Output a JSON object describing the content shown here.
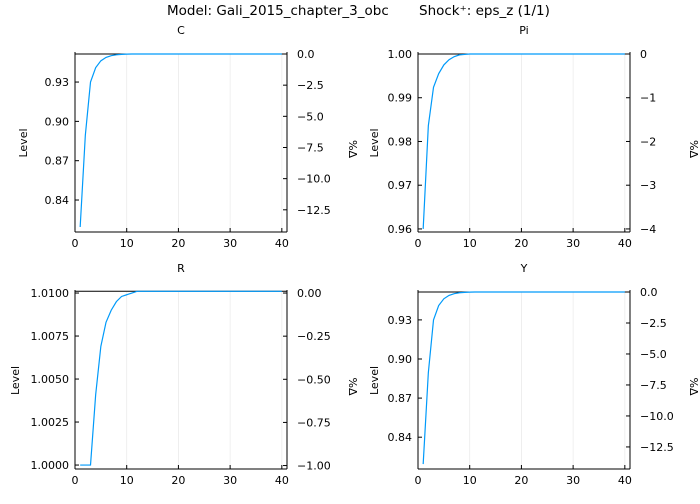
{
  "figure": {
    "title_model": "Model: Gali_2015_chapter_3_obc",
    "title_shock": "Shock⁺: eps_z  (1/1)",
    "line_color": "#009AFA",
    "axis_color": "#000000",
    "grid_color": "#EBEBEB"
  },
  "chart_data": [
    {
      "type": "line",
      "title": "C",
      "xlabel": "",
      "ylabel": "Level",
      "ylabel_right": "%Δ",
      "xlim": [
        0,
        41
      ],
      "ylim": [
        0.8156,
        0.9514
      ],
      "ylim_right": [
        -14.28,
        0.0
      ],
      "x_ticks": [
        0,
        10,
        20,
        30,
        40
      ],
      "y_ticks": [
        0.84,
        0.87,
        0.9,
        0.93
      ],
      "y_tick_labels": [
        "0.84",
        "0.87",
        "0.90",
        "0.93"
      ],
      "y_right_ticks": [
        0.0,
        -2.5,
        -5.0,
        -7.5,
        -10.0,
        -12.5
      ],
      "y_right_tick_labels": [
        "0.0",
        "−2.5",
        "−5.0",
        "−7.5",
        "−10.0",
        "−12.5"
      ],
      "steady_state": 0.9514,
      "grid": true,
      "x": [
        1,
        2,
        3,
        4,
        5,
        6,
        7,
        8,
        9,
        10,
        11,
        12,
        13,
        14,
        15,
        16,
        17,
        18,
        19,
        20,
        21,
        22,
        23,
        24,
        25,
        26,
        27,
        28,
        29,
        30,
        31,
        32,
        33,
        34,
        35,
        36,
        37,
        38,
        39,
        40
      ],
      "values": [
        0.8194,
        0.8895,
        0.93,
        0.941,
        0.9462,
        0.9488,
        0.9501,
        0.9508,
        0.9511,
        0.9513,
        0.9514,
        0.9514,
        0.9514,
        0.9514,
        0.9514,
        0.9514,
        0.9514,
        0.9514,
        0.9514,
        0.9514,
        0.9514,
        0.9514,
        0.9514,
        0.9514,
        0.9514,
        0.9514,
        0.9514,
        0.9514,
        0.9514,
        0.9514,
        0.9514,
        0.9514,
        0.9514,
        0.9514,
        0.9514,
        0.9514,
        0.9514,
        0.9514,
        0.9514,
        0.9514
      ]
    },
    {
      "type": "line",
      "title": "Pi",
      "xlabel": "",
      "ylabel": "Level",
      "ylabel_right": "%Δ",
      "xlim": [
        0,
        41
      ],
      "ylim": [
        0.9593,
        1.0
      ],
      "ylim_right": [
        -4.07,
        0.0
      ],
      "x_ticks": [
        0,
        10,
        20,
        30,
        40
      ],
      "y_ticks": [
        0.96,
        0.97,
        0.98,
        0.99,
        1.0
      ],
      "y_tick_labels": [
        "0.96",
        "0.97",
        "0.98",
        "0.99",
        "1.00"
      ],
      "y_right_ticks": [
        0,
        -1,
        -2,
        -3,
        -4
      ],
      "y_right_tick_labels": [
        "0",
        "−1",
        "−2",
        "−3",
        "−4"
      ],
      "steady_state": 1.0,
      "grid": true,
      "x": [
        1,
        2,
        3,
        4,
        5,
        6,
        7,
        8,
        9,
        10,
        11,
        12,
        13,
        14,
        15,
        16,
        17,
        18,
        19,
        20,
        21,
        22,
        23,
        24,
        25,
        26,
        27,
        28,
        29,
        30,
        31,
        32,
        33,
        34,
        35,
        36,
        37,
        38,
        39,
        40
      ],
      "values": [
        0.96,
        0.9836,
        0.9924,
        0.9955,
        0.9975,
        0.9987,
        0.9994,
        0.9998,
        0.9999,
        1.0,
        1.0,
        1.0,
        1.0,
        1.0,
        1.0,
        1.0,
        1.0,
        1.0,
        1.0,
        1.0,
        1.0,
        1.0,
        1.0,
        1.0,
        1.0,
        1.0,
        1.0,
        1.0,
        1.0,
        1.0,
        1.0,
        1.0,
        1.0,
        1.0,
        1.0,
        1.0,
        1.0,
        1.0,
        1.0,
        1.0
      ]
    },
    {
      "type": "line",
      "title": "R",
      "xlabel": "",
      "ylabel": "Level",
      "ylabel_right": "%Δ",
      "xlim": [
        0,
        41
      ],
      "ylim": [
        0.99977,
        1.01006
      ],
      "ylim_right": [
        -1.02,
        0.006
      ],
      "x_ticks": [
        0,
        10,
        20,
        30,
        40
      ],
      "y_ticks": [
        1.0,
        1.0025,
        1.005,
        1.0075,
        1.01
      ],
      "y_tick_labels": [
        "1.0000",
        "1.0025",
        "1.0050",
        "1.0075",
        "1.0100"
      ],
      "y_right_ticks": [
        0.0,
        -0.25,
        -0.5,
        -0.75,
        -1.0
      ],
      "y_right_tick_labels": [
        "0.00",
        "−0.25",
        "−0.50",
        "−0.75",
        "−1.00"
      ],
      "steady_state": 1.0101,
      "grid": true,
      "x": [
        1,
        2,
        3,
        4,
        5,
        6,
        7,
        8,
        9,
        10,
        11,
        12,
        13,
        14,
        15,
        16,
        17,
        18,
        19,
        20,
        21,
        22,
        23,
        24,
        25,
        26,
        27,
        28,
        29,
        30,
        31,
        32,
        33,
        34,
        35,
        36,
        37,
        38,
        39,
        40
      ],
      "values": [
        1.0,
        1.0,
        1.0,
        1.0041,
        1.0069,
        1.0083,
        1.009,
        1.0095,
        1.0098,
        1.0099,
        1.01,
        1.0101,
        1.0101,
        1.0101,
        1.0101,
        1.0101,
        1.0101,
        1.0101,
        1.0101,
        1.0101,
        1.0101,
        1.0101,
        1.0101,
        1.0101,
        1.0101,
        1.0101,
        1.0101,
        1.0101,
        1.0101,
        1.0101,
        1.0101,
        1.0101,
        1.0101,
        1.0101,
        1.0101,
        1.0101,
        1.0101,
        1.0101,
        1.0101,
        1.0101
      ]
    },
    {
      "type": "line",
      "title": "Y",
      "xlabel": "",
      "ylabel": "Level",
      "ylabel_right": "%Δ",
      "xlim": [
        0,
        41
      ],
      "ylim": [
        0.8156,
        0.9514
      ],
      "ylim_right": [
        -14.28,
        0.0
      ],
      "x_ticks": [
        0,
        10,
        20,
        30,
        40
      ],
      "y_ticks": [
        0.84,
        0.87,
        0.9,
        0.93
      ],
      "y_tick_labels": [
        "0.84",
        "0.87",
        "0.90",
        "0.93"
      ],
      "y_right_ticks": [
        0.0,
        -2.5,
        -5.0,
        -7.5,
        -10.0,
        -12.5
      ],
      "y_right_tick_labels": [
        "0.0",
        "−2.5",
        "−5.0",
        "−7.5",
        "−10.0",
        "−12.5"
      ],
      "steady_state": 0.9514,
      "grid": true,
      "x": [
        1,
        2,
        3,
        4,
        5,
        6,
        7,
        8,
        9,
        10,
        11,
        12,
        13,
        14,
        15,
        16,
        17,
        18,
        19,
        20,
        21,
        22,
        23,
        24,
        25,
        26,
        27,
        28,
        29,
        30,
        31,
        32,
        33,
        34,
        35,
        36,
        37,
        38,
        39,
        40
      ],
      "values": [
        0.8194,
        0.8895,
        0.93,
        0.941,
        0.9462,
        0.9488,
        0.9501,
        0.9508,
        0.9511,
        0.9513,
        0.9514,
        0.9514,
        0.9514,
        0.9514,
        0.9514,
        0.9514,
        0.9514,
        0.9514,
        0.9514,
        0.9514,
        0.9514,
        0.9514,
        0.9514,
        0.9514,
        0.9514,
        0.9514,
        0.9514,
        0.9514,
        0.9514,
        0.9514,
        0.9514,
        0.9514,
        0.9514,
        0.9514,
        0.9514,
        0.9514,
        0.9514,
        0.9514,
        0.9514,
        0.9514
      ]
    }
  ]
}
